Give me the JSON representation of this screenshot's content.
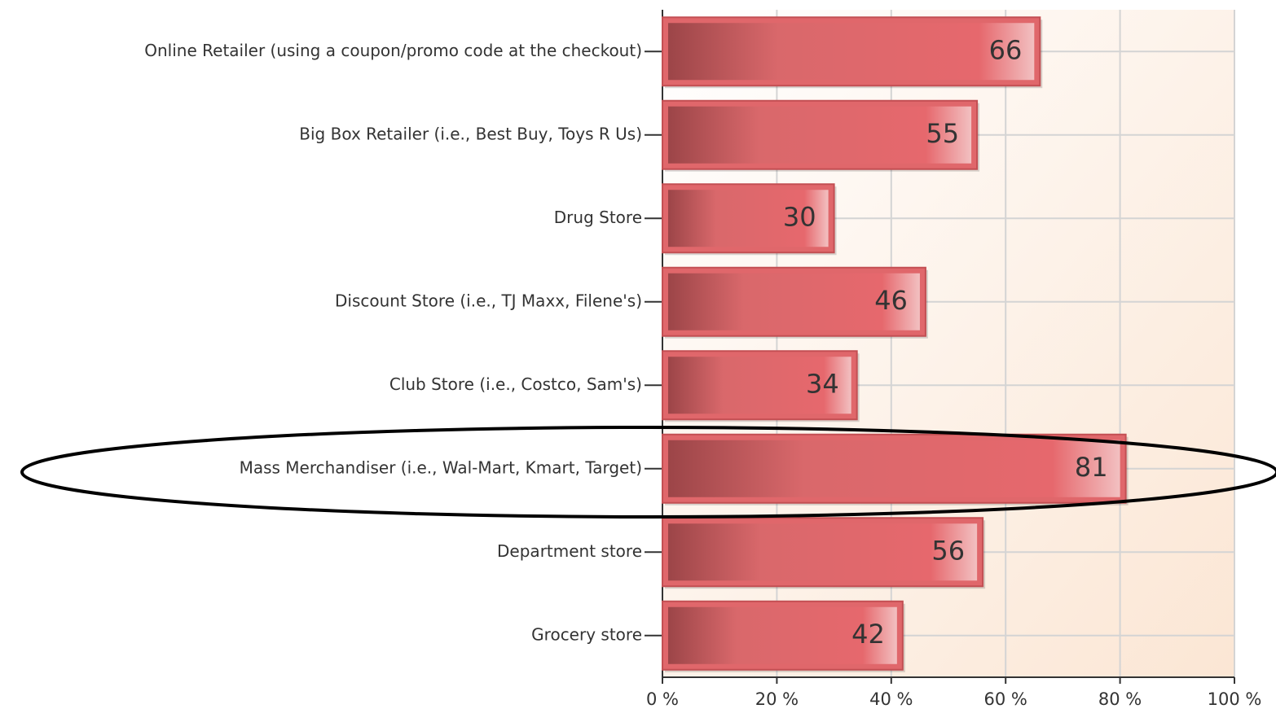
{
  "chart_data": {
    "type": "bar",
    "orientation": "horizontal",
    "categories": [
      "Online Retailer (using a coupon/promo code at the checkout)",
      "Big Box Retailer (i.e., Best Buy, Toys R Us)",
      "Drug Store",
      "Discount Store (i.e., TJ Maxx, Filene's)",
      "Club Store (i.e., Costco, Sam's)",
      "Mass Merchandiser (i.e., Wal-Mart, Kmart, Target)",
      "Department store",
      "Grocery store"
    ],
    "values": [
      66,
      55,
      30,
      46,
      34,
      81,
      56,
      42
    ],
    "color": "#e0676b",
    "xlim": [
      0,
      100
    ],
    "xticks": [
      {
        "value": 0,
        "label": "0 %"
      },
      {
        "value": 20,
        "label": "20 %"
      },
      {
        "value": 40,
        "label": "40 %"
      },
      {
        "value": 60,
        "label": "60 %"
      },
      {
        "value": 80,
        "label": "80 %"
      },
      {
        "value": 100,
        "label": "100 %"
      }
    ],
    "grid": true
  }
}
